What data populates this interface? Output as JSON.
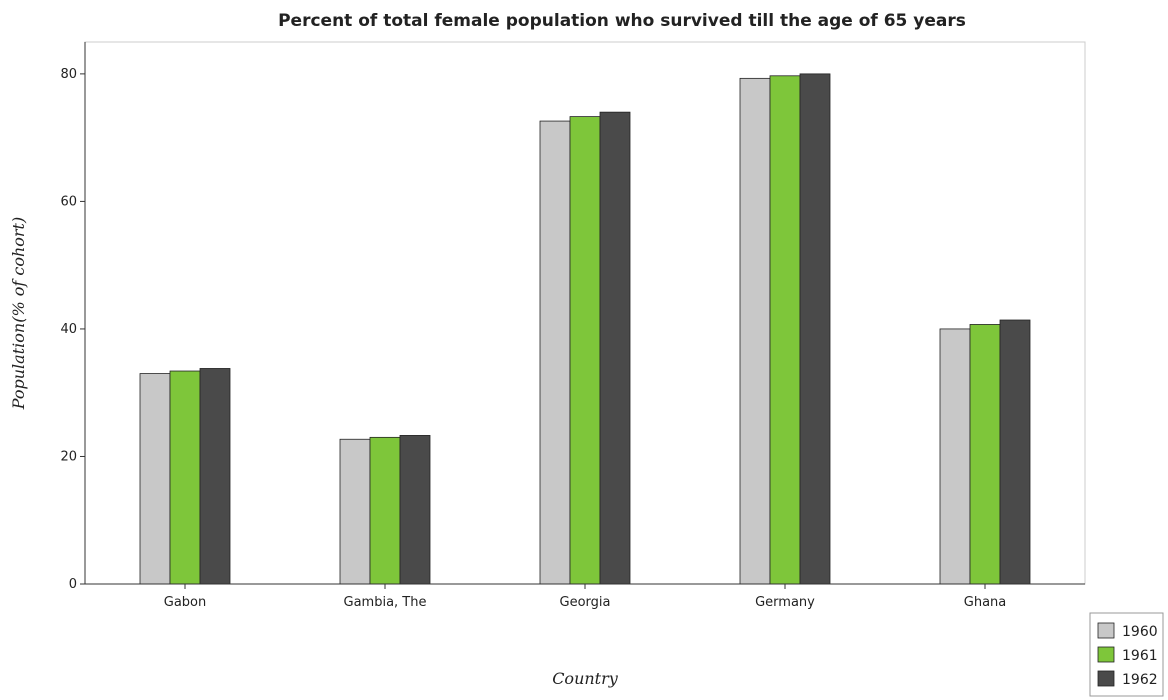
{
  "chart_data": {
    "type": "bar",
    "title": "Percent of total female population who survived till the age of 65 years",
    "xlabel": "Country",
    "ylabel": "Population(% of cohort)",
    "categories": [
      "Gabon",
      "Gambia, The",
      "Georgia",
      "Germany",
      "Ghana"
    ],
    "series": [
      {
        "name": "1960",
        "color": "#c8c8c8",
        "values": [
          33.0,
          22.7,
          72.6,
          79.3,
          40.0
        ]
      },
      {
        "name": "1961",
        "color": "#7ec63a",
        "values": [
          33.4,
          23.0,
          73.3,
          79.7,
          40.7
        ]
      },
      {
        "name": "1962",
        "color": "#4a4a4a",
        "values": [
          33.8,
          23.3,
          74.0,
          80.0,
          41.4
        ]
      }
    ],
    "ylim": [
      0,
      85
    ],
    "yticks": [
      0,
      20,
      40,
      60,
      80
    ],
    "legend_position": "bottom-right",
    "grid": false
  }
}
